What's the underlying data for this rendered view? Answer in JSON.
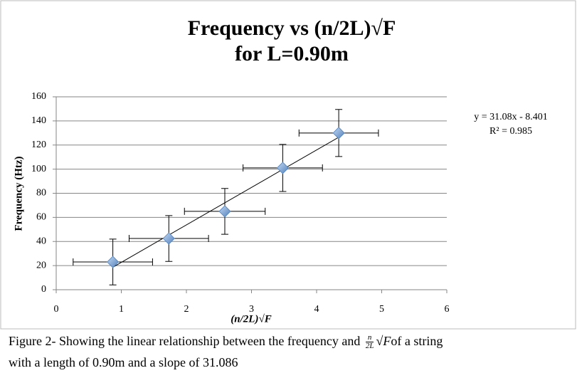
{
  "chart_data": {
    "type": "scatter",
    "title": [
      "Frequency vs (n/2L)√F",
      "for L=0.90m"
    ],
    "x_label": "(n/2L)√F",
    "y_label": "Frequency (Htz)",
    "x": [
      0.87,
      1.73,
      2.59,
      3.48,
      4.34
    ],
    "series": [
      {
        "color": "#4f81bd",
        "values": [
          23,
          42.5,
          65,
          101,
          130
        ],
        "x_errors": [
          0.61,
          0.61,
          0.62,
          0.61,
          0.61
        ],
        "y_errors": [
          19,
          19,
          19,
          19.5,
          19.5
        ]
      }
    ],
    "trendline": {
      "slope": 31.08,
      "intercept": -8.401,
      "equation": "y = 31.08x - 8.401",
      "r_squared": "R² = 0.985"
    },
    "xlim": [
      0,
      6
    ],
    "xticks": [
      0,
      1,
      2,
      3,
      4,
      5,
      6
    ],
    "ylim": [
      0,
      160
    ],
    "yticks": [
      0,
      20,
      40,
      60,
      80,
      100,
      120,
      140,
      160
    ],
    "grid": true
  },
  "caption": {
    "before": "Figure 2- Showing the linear relationship between the frequency and",
    "numerator": "n",
    "denominator": "2L",
    "root": "√F",
    "after": "of a string",
    "line2": "with a length of 0.90m and a slope of 31.086"
  }
}
